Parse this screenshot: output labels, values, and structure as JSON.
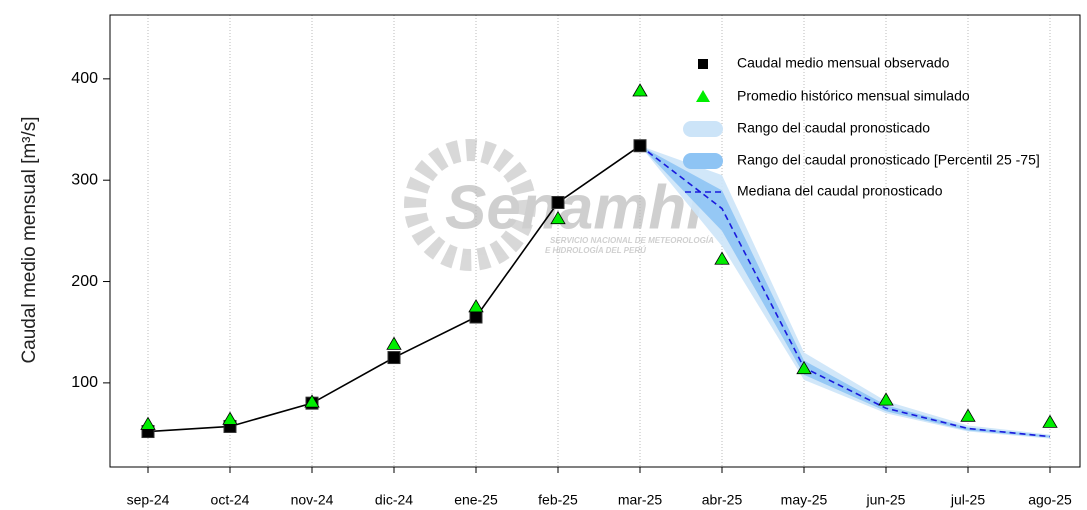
{
  "chart_data": {
    "type": "line",
    "y_label": "Caudal medio mensual  [m³/s]",
    "watermark": {
      "name": "Senamhi",
      "line1": "SERVICIO NACIONAL DE METEOROLOGÍA",
      "line2": "E HIDROLOGÍA DEL PERÚ"
    },
    "categories": [
      "sep-24",
      "oct-24",
      "nov-24",
      "dic-24",
      "ene-25",
      "feb-25",
      "mar-25",
      "abr-25",
      "may-25",
      "jun-25",
      "jul-25",
      "ago-25"
    ],
    "ylim": [
      17,
      463
    ],
    "yticks": [
      100,
      200,
      300,
      400
    ],
    "grid": true,
    "series": [
      {
        "name": "Caudal medio mensual observado",
        "color": "#000000",
        "marker": "square",
        "values": [
          52,
          57,
          80,
          125,
          165,
          278,
          334,
          null,
          null,
          null,
          null,
          null
        ]
      },
      {
        "name": "Promedio histórico mensual simulado",
        "color": "#00ee00",
        "marker": "triangle",
        "values": [
          59,
          64,
          81,
          138,
          175,
          262,
          388,
          222,
          114,
          83,
          67,
          61
        ]
      },
      {
        "name": "Rango del caudal pronosticado",
        "color": "#cce4f8",
        "marker": "band",
        "lower": [
          null,
          null,
          null,
          null,
          null,
          null,
          334,
          235,
          103,
          70,
          52,
          45
        ],
        "upper": [
          null,
          null,
          null,
          null,
          null,
          null,
          334,
          305,
          130,
          82,
          58,
          49
        ]
      },
      {
        "name": "Rango del caudal pronosticado [Percentil 25 -75]",
        "color": "#8ec4f4",
        "marker": "band",
        "lower": [
          null,
          null,
          null,
          null,
          null,
          null,
          334,
          250,
          108,
          72,
          53,
          46
        ],
        "upper": [
          null,
          null,
          null,
          null,
          null,
          null,
          334,
          290,
          122,
          78,
          56,
          48
        ]
      },
      {
        "name": "Mediana del caudal pronosticado",
        "color": "#1a1adc",
        "marker": "dashed",
        "values": [
          null,
          null,
          null,
          null,
          null,
          null,
          334,
          272,
          115,
          75,
          55,
          47
        ]
      }
    ]
  }
}
